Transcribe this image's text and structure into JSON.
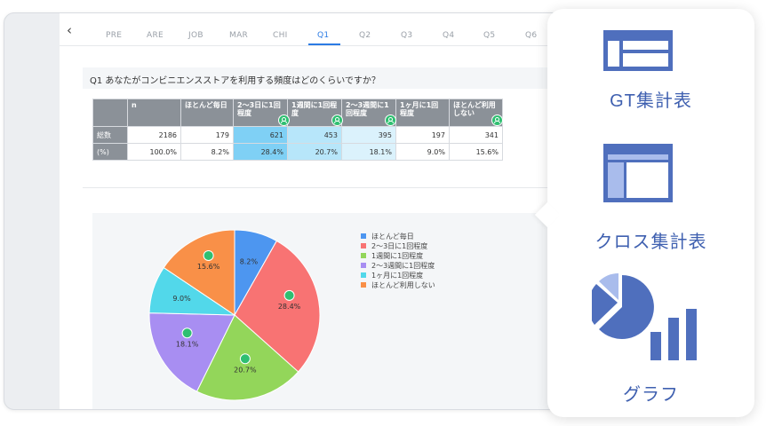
{
  "tabs": {
    "items": [
      "PRE",
      "ARE",
      "JOB",
      "MAR",
      "CHI",
      "Q1",
      "Q2",
      "Q3",
      "Q4",
      "Q5",
      "Q6"
    ],
    "active": "Q1"
  },
  "question": "Q1 あなたがコンビニエンスストアを利用する頻度はどのくらいですか？",
  "table": {
    "headers": [
      "n",
      "ほとんど毎日",
      "2～3日に1回程度",
      "1週間に1回程度",
      "2～3週間に1回程度",
      "1ヶ月に1回程度",
      "ほとんど利用しない"
    ],
    "rows": [
      {
        "label": "総数",
        "cells": [
          "2186",
          "179",
          "621",
          "453",
          "395",
          "197",
          "341"
        ]
      },
      {
        "label": "(%)",
        "cells": [
          "100.0%",
          "8.2%",
          "28.4%",
          "20.7%",
          "18.1%",
          "9.0%",
          "15.6%"
        ]
      }
    ]
  },
  "chart_data": {
    "type": "pie",
    "title": "",
    "slices": [
      {
        "name": "ほとんど毎日",
        "value": 8.2,
        "label": "8.2%",
        "color": "#4d96f0"
      },
      {
        "name": "2～3日に1回程度",
        "value": 28.4,
        "label": "28.4%",
        "color": "#f87373"
      },
      {
        "name": "1週間に1回程度",
        "value": 20.7,
        "label": "20.7%",
        "color": "#93d65a"
      },
      {
        "name": "2～3週間に1回程度",
        "value": 18.1,
        "label": "18.1%",
        "color": "#a88ef2"
      },
      {
        "name": "1ヶ月に1回程度",
        "value": 9.0,
        "label": "9.0%",
        "color": "#52d8ea"
      },
      {
        "name": "ほとんど利用しない",
        "value": 15.6,
        "label": "15.6%",
        "color": "#f99048"
      }
    ],
    "legend_position": "right"
  },
  "menu": {
    "gt_label": "GT集計表",
    "cross_label": "クロス集計表",
    "graph_label": "グラフ"
  },
  "colors": {
    "accent": "#2b7be4",
    "menu_icon": "#4f6fbd",
    "menu_icon_light": "#a9bcec",
    "pin": "#2fbf71"
  }
}
